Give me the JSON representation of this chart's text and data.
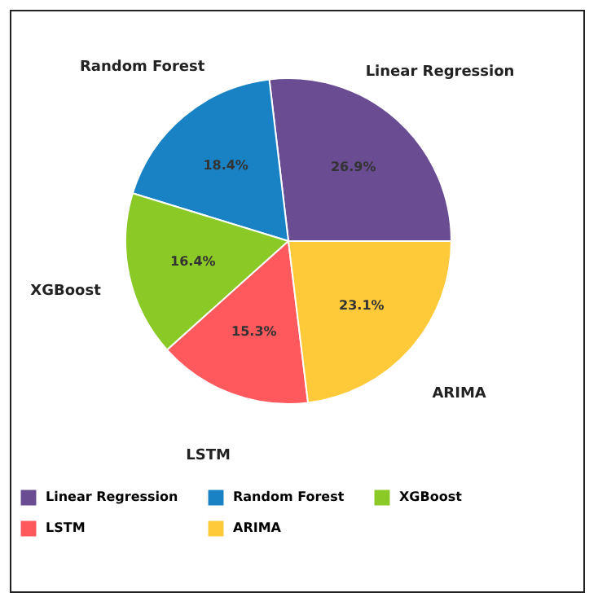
{
  "chart_data": {
    "type": "pie",
    "categories": [
      "Linear Regression",
      "Random Forest",
      "XGBoost",
      "LSTM",
      "ARIMA"
    ],
    "values": [
      26.9,
      18.4,
      16.4,
      15.3,
      23.1
    ],
    "colors": [
      "#6a4c93",
      "#1982c4",
      "#8ac926",
      "#ff595e",
      "#ffca3a"
    ],
    "value_labels": [
      "26.9%",
      "18.4%",
      "16.4%",
      "15.3%",
      "23.1%"
    ],
    "legend": "bottom"
  }
}
